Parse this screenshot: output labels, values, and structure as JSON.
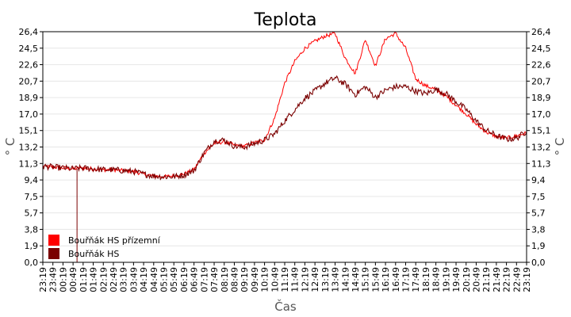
{
  "chart_data": {
    "type": "line",
    "title": "Teplota",
    "xlabel": "Čas",
    "ylabel": "° C",
    "ylim": [
      0,
      26.4
    ],
    "y_ticks": [
      "0,0",
      "1,9",
      "3,8",
      "5,7",
      "7,5",
      "9,4",
      "11,3",
      "13,2",
      "15,1",
      "17,0",
      "18,9",
      "20,7",
      "22,6",
      "24,5",
      "26,4"
    ],
    "x_ticks": [
      "23:19",
      "23:49",
      "00:19",
      "00:49",
      "01:19",
      "01:49",
      "02:19",
      "02:49",
      "03:19",
      "03:49",
      "04:19",
      "04:49",
      "05:19",
      "05:49",
      "06:19",
      "06:49",
      "07:19",
      "07:49",
      "08:19",
      "08:49",
      "09:19",
      "09:49",
      "10:19",
      "10:49",
      "11:19",
      "11:49",
      "12:19",
      "12:49",
      "13:19",
      "13:49",
      "14:19",
      "14:49",
      "15:19",
      "15:49",
      "16:19",
      "16:49",
      "17:19",
      "17:49",
      "18:19",
      "18:49",
      "19:19",
      "19:49",
      "20:19",
      "20:49",
      "21:19",
      "21:49",
      "22:19",
      "22:49",
      "23:19"
    ],
    "grid": true,
    "legend": "bottom-left",
    "series": [
      {
        "name": "Bouřňák HS přízemní",
        "color": "#ff0000",
        "values": [
          11.0,
          10.9,
          10.8,
          10.7,
          10.8,
          10.7,
          10.6,
          10.6,
          10.5,
          10.4,
          10.1,
          9.9,
          9.8,
          9.9,
          10.1,
          10.6,
          12.5,
          13.6,
          13.8,
          13.4,
          13.3,
          13.7,
          14.0,
          16.5,
          20.5,
          23.0,
          24.5,
          25.3,
          25.9,
          26.2,
          23.4,
          21.6,
          25.5,
          22.5,
          25.6,
          26.2,
          24.5,
          21.0,
          20.2,
          19.8,
          19.0,
          18.0,
          17.0,
          15.8,
          14.9,
          14.4,
          14.2,
          14.5,
          14.8
        ]
      },
      {
        "name": "Bouřňák HS",
        "color": "#7a0000",
        "values": [
          11.0,
          10.9,
          10.8,
          10.7,
          10.8,
          10.7,
          10.6,
          10.6,
          10.5,
          10.4,
          10.1,
          9.9,
          9.8,
          9.8,
          10.0,
          10.5,
          12.5,
          13.9,
          14.0,
          13.3,
          13.2,
          13.6,
          14.0,
          14.7,
          16.2,
          17.5,
          18.8,
          19.6,
          20.5,
          21.1,
          20.4,
          19.2,
          20.1,
          18.9,
          19.7,
          20.1,
          20.1,
          19.6,
          19.3,
          19.8,
          19.3,
          18.4,
          17.5,
          16.2,
          15.1,
          14.5,
          14.1,
          14.2,
          15.0
        ]
      }
    ],
    "spike": {
      "x": "00:49",
      "value": 0.0
    }
  }
}
